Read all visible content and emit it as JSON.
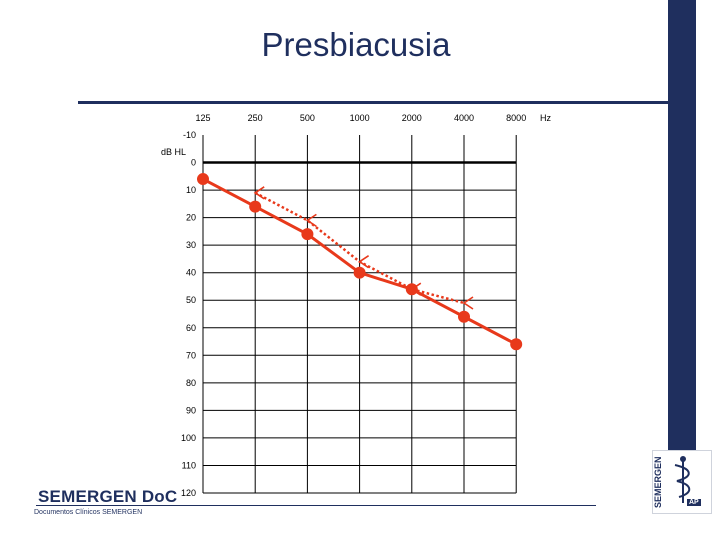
{
  "slide": {
    "title": "Presbiacusia",
    "brand_name": "SEMERGEN DoC",
    "brand_subtitle": "Documentos Clínicos SEMERGEN",
    "logo_text": "SEMERGEN",
    "logo_badge": "AP",
    "colors": {
      "navy": "#1f2f5e",
      "series": "#e8391b",
      "grid": "#000000"
    }
  },
  "chart_data": {
    "type": "line",
    "title": "",
    "xlabel": "",
    "ylabel": "dB HL",
    "x_unit": "Hz",
    "x_ticks": [
      "125",
      "250",
      "500",
      "1000",
      "2000",
      "4000",
      "8000"
    ],
    "y_ticks": [
      "-10",
      "0",
      "10",
      "20",
      "30",
      "40",
      "50",
      "60",
      "70",
      "80",
      "90",
      "100",
      "110",
      "120"
    ],
    "ylim": [
      -10,
      120
    ],
    "y_inverted": true,
    "grid": true,
    "series": [
      {
        "style": "solid",
        "marker": "circle",
        "x": [
          "125",
          "250",
          "500",
          "1000",
          "2000",
          "4000",
          "8000"
        ],
        "values": [
          6,
          16,
          26,
          40,
          46,
          56,
          66
        ]
      },
      {
        "style": "dotted",
        "marker": "less-than",
        "x": [
          "250",
          "500",
          "1000",
          "2000",
          "4000"
        ],
        "values": [
          11,
          21,
          36,
          46,
          51
        ]
      }
    ]
  }
}
